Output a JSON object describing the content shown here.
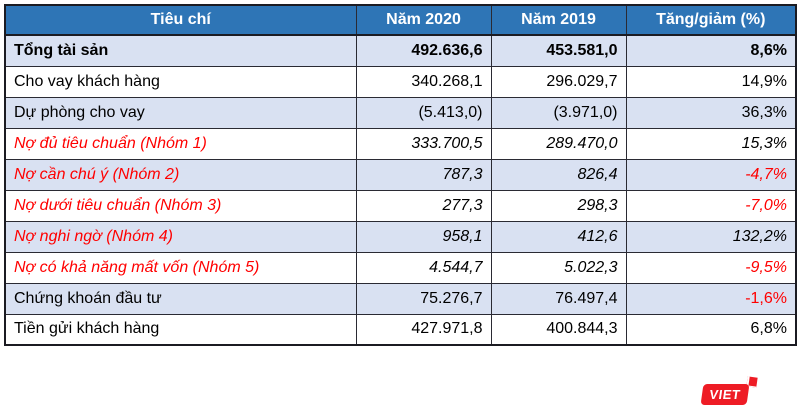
{
  "header": {
    "columns": [
      "Tiêu chí",
      "Năm 2020",
      "Năm 2019",
      "Tăng/giảm (%)"
    ]
  },
  "table": {
    "rows": [
      {
        "label": "Tổng tài sản",
        "y2020": "492.636,6",
        "y2019": "453.581,0",
        "change": "8,6%",
        "emphasis": "total",
        "shade": true,
        "change_negative": false
      },
      {
        "label": "Cho vay khách hàng",
        "y2020": "340.268,1",
        "y2019": "296.029,7",
        "change": "14,9%",
        "emphasis": "normal",
        "shade": false,
        "change_negative": false
      },
      {
        "label": "Dự phòng cho vay",
        "y2020": "(5.413,0)",
        "y2019": "(3.971,0)",
        "change": "36,3%",
        "emphasis": "normal",
        "shade": true,
        "change_negative": false
      },
      {
        "label": "Nợ đủ tiêu chuẩn (Nhóm 1)",
        "y2020": "333.700,5",
        "y2019": "289.470,0",
        "change": "15,3%",
        "emphasis": "group",
        "shade": false,
        "change_negative": false
      },
      {
        "label": "Nợ cần chú ý (Nhóm 2)",
        "y2020": "787,3",
        "y2019": "826,4",
        "change": "-4,7%",
        "emphasis": "group",
        "shade": true,
        "change_negative": true
      },
      {
        "label": "Nợ dưới tiêu chuẩn (Nhóm 3)",
        "y2020": "277,3",
        "y2019": "298,3",
        "change": "-7,0%",
        "emphasis": "group",
        "shade": false,
        "change_negative": true
      },
      {
        "label": "Nợ nghi ngờ (Nhóm 4)",
        "y2020": "958,1",
        "y2019": "412,6",
        "change": "132,2%",
        "emphasis": "group",
        "shade": true,
        "change_negative": false
      },
      {
        "label": "Nợ có khả năng mất vốn (Nhóm 5)",
        "y2020": "4.544,7",
        "y2019": "5.022,3",
        "change": "-9,5%",
        "emphasis": "group",
        "shade": false,
        "change_negative": true
      },
      {
        "label": "Chứng khoán đầu tư",
        "y2020": "75.276,7",
        "y2019": "76.497,4",
        "change": "-1,6%",
        "emphasis": "normal",
        "shade": true,
        "change_negative": true
      },
      {
        "label": "Tiền gửi khách hàng",
        "y2020": "427.971,8",
        "y2019": "400.844,3",
        "change": "6,8%",
        "emphasis": "normal",
        "shade": false,
        "change_negative": false
      }
    ]
  },
  "logo": {
    "label": "VIET"
  },
  "colors": {
    "header_bg": "#2E75B6",
    "header_text": "#FFFFFF",
    "row_shade_bg": "#D9E1F2",
    "row_plain_bg": "#FFFFFF",
    "red_text": "#FF0000",
    "border": "#2A2A33",
    "logo_red": "#EE1C25"
  },
  "chart_data": {
    "type": "table",
    "title": "",
    "columns": [
      "Tiêu chí",
      "Năm 2020",
      "Năm 2019",
      "Tăng/giảm (%)"
    ],
    "rows": [
      [
        "Tổng tài sản",
        "492.636,6",
        "453.581,0",
        "8,6%"
      ],
      [
        "Cho vay khách hàng",
        "340.268,1",
        "296.029,7",
        "14,9%"
      ],
      [
        "Dự phòng cho vay",
        "(5.413,0)",
        "(3.971,0)",
        "36,3%"
      ],
      [
        "Nợ đủ tiêu chuẩn (Nhóm 1)",
        "333.700,5",
        "289.470,0",
        "15,3%"
      ],
      [
        "Nợ cần chú ý (Nhóm 2)",
        "787,3",
        "826,4",
        "-4,7%"
      ],
      [
        "Nợ dưới tiêu chuẩn (Nhóm 3)",
        "277,3",
        "298,3",
        "-7,0%"
      ],
      [
        "Nợ nghi ngờ (Nhóm 4)",
        "958,1",
        "412,6",
        "132,2%"
      ],
      [
        "Nợ có khả năng mất vốn (Nhóm 5)",
        "4.544,7",
        "5.022,3",
        "-9,5%"
      ],
      [
        "Chứng khoán đầu tư",
        "75.276,7",
        "76.497,4",
        "-1,6%"
      ],
      [
        "Tiền gửi khách hàng",
        "427.971,8",
        "400.844,3",
        "6,8%"
      ]
    ],
    "categories": [
      "Tổng tài sản",
      "Cho vay khách hàng",
      "Dự phòng cho vay",
      "Nợ đủ tiêu chuẩn (Nhóm 1)",
      "Nợ cần chú ý (Nhóm 2)",
      "Nợ dưới tiêu chuẩn (Nhóm 3)",
      "Nợ nghi ngờ (Nhóm 4)",
      "Nợ có khả năng mất vốn (Nhóm 5)",
      "Chứng khoán đầu tư",
      "Tiền gửi khách hàng"
    ],
    "series": [
      {
        "name": "Năm 2020",
        "values": [
          492636.6,
          340268.1,
          -5413.0,
          333700.5,
          787.3,
          277.3,
          958.1,
          4544.7,
          75276.7,
          427971.8
        ]
      },
      {
        "name": "Năm 2019",
        "values": [
          453581.0,
          296029.7,
          -3971.0,
          289470.0,
          826.4,
          298.3,
          412.6,
          5022.3,
          76497.4,
          400844.3
        ]
      },
      {
        "name": "Tăng/giảm (%)",
        "values": [
          8.6,
          14.9,
          36.3,
          15.3,
          -4.7,
          -7.0,
          132.2,
          -9.5,
          -1.6,
          6.8
        ]
      }
    ]
  }
}
